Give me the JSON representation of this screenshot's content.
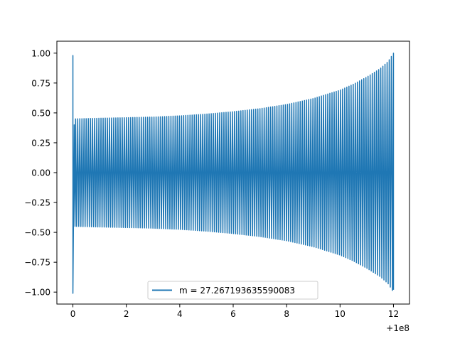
{
  "chart_data": {
    "type": "line",
    "title": "",
    "xlabel": "",
    "ylabel": "",
    "x_offset_label": "+1e8",
    "xlim": [
      -0.6,
      12.6
    ],
    "ylim": [
      -1.1,
      1.1
    ],
    "x_ticks": [
      0,
      2,
      4,
      6,
      8,
      10,
      12
    ],
    "x_tick_labels": [
      "0",
      "2",
      "4",
      "6",
      "8",
      "10",
      "12"
    ],
    "y_ticks": [
      1.0,
      0.75,
      0.5,
      0.25,
      0.0,
      -0.25,
      -0.5,
      -0.75,
      -1.0
    ],
    "y_tick_labels": [
      "1.00",
      "0.75",
      "0.50",
      "0.25",
      "0.00",
      "−0.25",
      "−0.50",
      "−0.75",
      "−1.00"
    ],
    "grid": false,
    "legend_position": "bottom-center",
    "series": [
      {
        "name": "m = 27.267193635590083",
        "color": "#1f77b4",
        "description_of_shape": "oscillating signal; initial spike to ±1 at x=0, amplitude about 0.45 from x≈0.1, growing slowly to ~0.55 near x=9 then rapidly to 1.0 at x=12",
        "x_start": 0,
        "x_end": 12,
        "cycles": 150,
        "initial_spike": {
          "x": 0,
          "high": 0.98,
          "low": -1.01
        },
        "envelope": {
          "x": [
            0.1,
            1,
            2,
            3,
            4,
            5,
            6,
            7,
            8,
            9,
            10,
            10.5,
            11,
            11.5,
            11.8,
            12
          ],
          "amplitude": [
            0.45,
            0.455,
            0.46,
            0.465,
            0.475,
            0.49,
            0.51,
            0.535,
            0.57,
            0.62,
            0.69,
            0.74,
            0.8,
            0.87,
            0.93,
            1.0
          ]
        }
      }
    ]
  }
}
